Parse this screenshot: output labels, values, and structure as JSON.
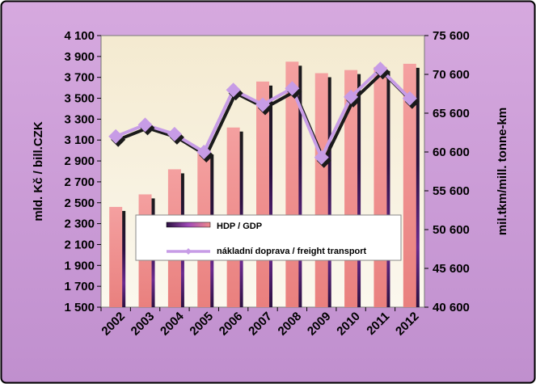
{
  "chart_data": {
    "type": "bar+line",
    "categories": [
      "2002",
      "2003",
      "2004",
      "2005",
      "2006",
      "2007",
      "2008",
      "2009",
      "2010",
      "2011",
      "2012"
    ],
    "series": [
      {
        "name": "HDP / GDP",
        "type": "bar",
        "axis": "left",
        "values": [
          2460,
          2580,
          2820,
          3000,
          3220,
          3660,
          3850,
          3740,
          3770,
          3800,
          3830
        ]
      },
      {
        "name": "nákladní doprava / freight transport",
        "type": "line",
        "axis": "right",
        "values": [
          62600,
          64100,
          62900,
          60600,
          68600,
          66700,
          68800,
          59900,
          67700,
          71300,
          67500
        ]
      }
    ],
    "y_left": {
      "label": "mld. Kč / bill.CZK",
      "lim": [
        1500,
        4100
      ],
      "ticks": [
        1500,
        1700,
        1900,
        2100,
        2300,
        2500,
        2700,
        2900,
        3100,
        3300,
        3500,
        3700,
        3900,
        4100
      ],
      "tick_labels": [
        "1 500",
        "1 700",
        "1 900",
        "2 100",
        "2 300",
        "2 500",
        "2 700",
        "2 900",
        "3 100",
        "3 300",
        "3 500",
        "3 700",
        "3 900",
        "4 100"
      ]
    },
    "y_right": {
      "label": "mil.tkm/mill. tonne-km",
      "lim": [
        40600,
        75600
      ],
      "ticks": [
        40600,
        45600,
        50600,
        55600,
        60600,
        65600,
        70600,
        75600
      ],
      "tick_labels": [
        "40 600",
        "45 600",
        "50 600",
        "55 600",
        "60 600",
        "65 600",
        "70 600",
        "75 600"
      ]
    },
    "legend_position": "inside-lower-middle",
    "grid": false,
    "colors": {
      "frame_background": "#c9a0d4",
      "plot_background": "#f8f0d8",
      "bar_light": "#f08a8a",
      "bar_shadow_dark": "#4a1468",
      "line": "#c79ce6",
      "line_shadow": "#1a1a1a"
    }
  }
}
